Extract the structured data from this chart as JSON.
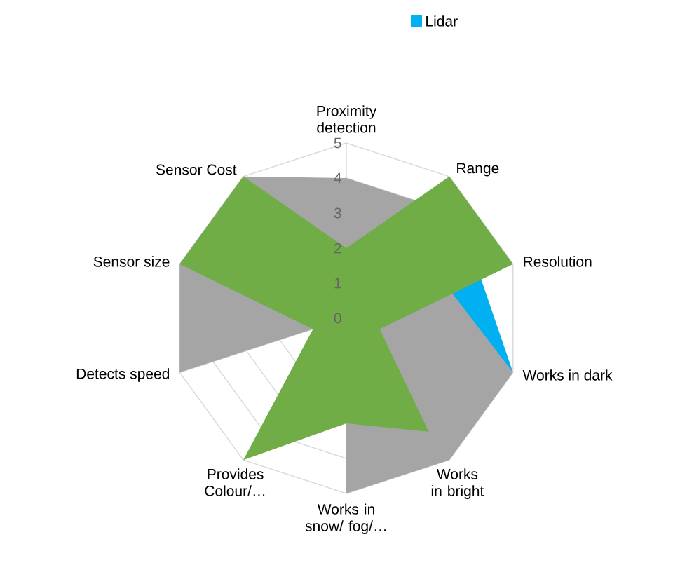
{
  "chart_data": {
    "type": "radar",
    "categories": [
      "Proximity detection",
      "Range",
      "Resolution",
      "Works in dark",
      "Works in bright",
      "Works in snow/ fog/…",
      "Provides Colour/…",
      "Detects speed",
      "Sensor size",
      "Sensor Cost"
    ],
    "series": [
      {
        "name": "Lidar",
        "color": "#00b0f0",
        "values": [
          null,
          null,
          4,
          5,
          null,
          null,
          null,
          null,
          null,
          null
        ]
      },
      {
        "color": "#a5a5a5",
        "values": [
          4,
          4,
          3,
          5,
          5,
          5,
          0,
          5,
          5,
          5
        ]
      },
      {
        "color": "#70ad47",
        "values": [
          2,
          5,
          5,
          1,
          4,
          3,
          5,
          1,
          5,
          5
        ]
      }
    ],
    "ylim": [
      0,
      5
    ],
    "yticks": [
      0,
      1,
      2,
      3,
      4,
      5
    ],
    "grid": true,
    "legend": "top"
  }
}
